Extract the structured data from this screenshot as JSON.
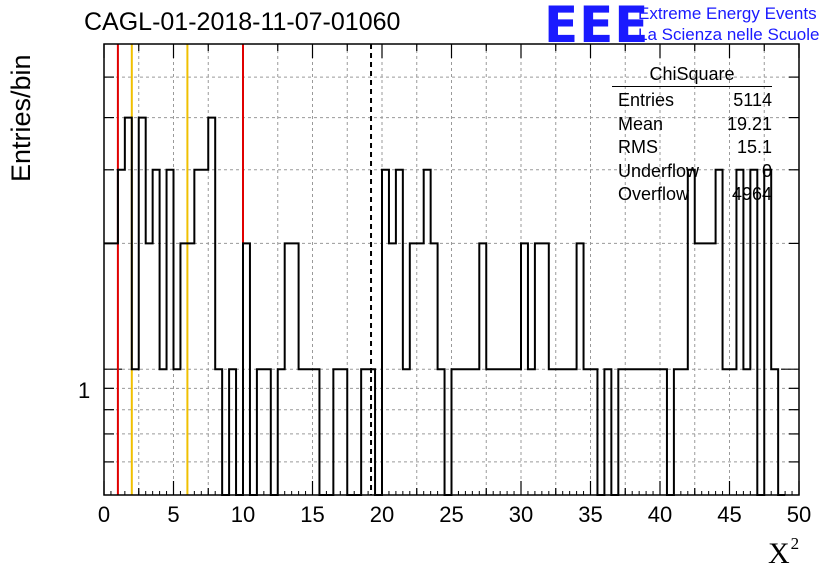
{
  "title": "CAGL-01-2018-11-07-01060",
  "logo": {
    "mark": "EEE",
    "line1": "Extreme Energy Events",
    "line2": "La Scienza nelle Scuole",
    "color": "#1a1aff"
  },
  "stats": {
    "name": "ChiSquare",
    "rows": [
      {
        "label": "Entries",
        "value": "5114"
      },
      {
        "label": "Mean",
        "value": "19.21"
      },
      {
        "label": "RMS",
        "value": "15.1"
      },
      {
        "label": "Underflow",
        "value": "0"
      },
      {
        "label": "Overflow",
        "value": "4964"
      }
    ]
  },
  "chart_data": {
    "type": "histogram",
    "ylabel": "Entries/bin",
    "xlabel": "X²",
    "xlim": [
      0,
      50
    ],
    "ylim": [
      0.5,
      6
    ],
    "yscale": "log",
    "grid": true,
    "xticks": [
      "0",
      "5",
      "10",
      "15",
      "20",
      "25",
      "30",
      "35",
      "40",
      "45",
      "50"
    ],
    "yticks": [
      "1"
    ],
    "bin_width": 0.5,
    "counts": [
      2,
      2,
      3,
      4,
      1,
      4,
      2,
      3,
      1,
      3,
      1,
      2,
      2,
      3,
      3,
      4,
      1,
      0,
      1,
      0,
      2,
      0,
      1,
      1,
      0,
      1,
      2,
      2,
      1,
      1,
      1,
      0,
      0,
      1,
      1,
      0,
      0,
      1,
      1,
      0,
      3,
      2,
      3,
      1,
      2,
      2,
      3,
      2,
      1,
      0,
      1,
      1,
      1,
      1,
      2,
      1,
      1,
      1,
      1,
      1,
      2,
      1,
      2,
      2,
      1,
      1,
      1,
      1,
      2,
      1,
      1,
      0,
      1,
      0,
      1,
      1,
      1,
      1,
      1,
      1,
      1,
      0,
      1,
      1,
      3,
      2,
      2,
      2,
      3,
      1,
      1,
      3,
      1,
      3,
      0,
      3,
      1,
      0
    ],
    "reference_lines": [
      {
        "x": 1,
        "color": "#e00000",
        "style": "solid"
      },
      {
        "x": 2,
        "color": "#f0c000",
        "style": "solid"
      },
      {
        "x": 6,
        "color": "#f0c000",
        "style": "solid"
      },
      {
        "x": 10,
        "color": "#e00000",
        "style": "solid"
      },
      {
        "x": 19.21,
        "color": "#000000",
        "style": "dashed"
      }
    ]
  }
}
